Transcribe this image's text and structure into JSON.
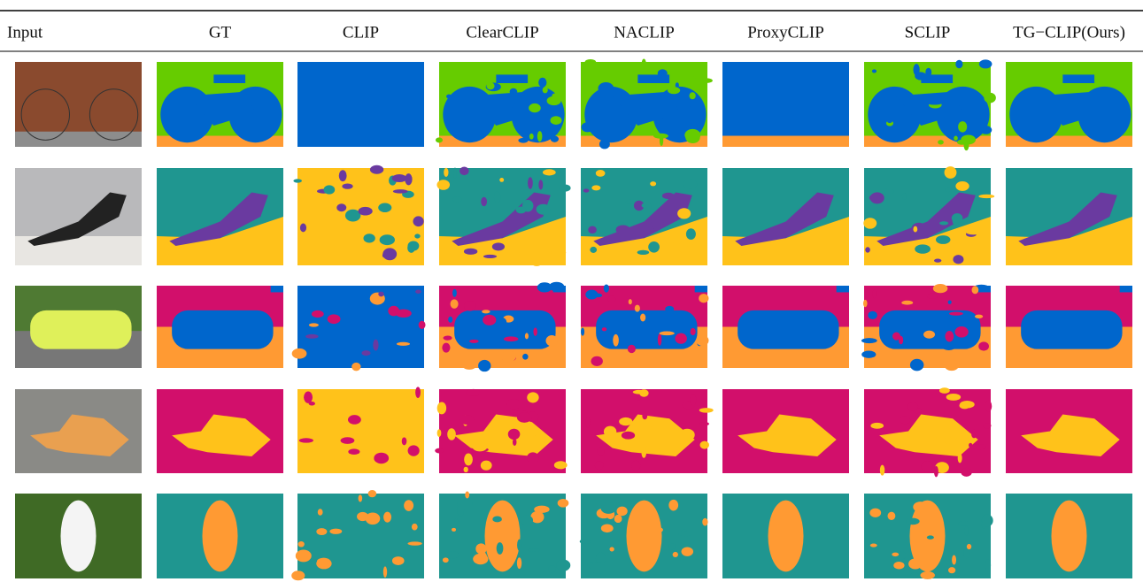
{
  "columns": [
    "Input",
    "GT",
    "CLIP",
    "ClearCLIP",
    "NACLIP",
    "ProxyCLIP",
    "SCLIP",
    "TG−CLIP(Ours)"
  ]
}
